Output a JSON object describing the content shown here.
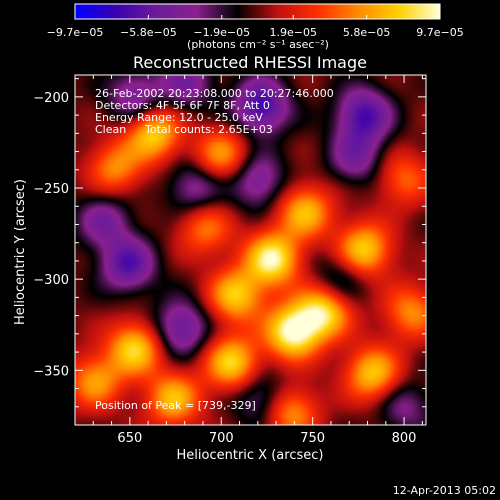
{
  "chart_data": {
    "type": "heatmap",
    "title": "Reconstructed RHESSI Image",
    "xlabel": "Heliocentric X (arcsec)",
    "ylabel": "Heliocentric Y (arcsec)",
    "xlim": [
      620,
      812
    ],
    "ylim": [
      -380,
      -188
    ],
    "x_ticks": [
      650,
      700,
      750,
      800
    ],
    "y_ticks": [
      -200,
      -250,
      -300,
      -350
    ],
    "x_tick_labels": [
      "650",
      "700",
      "750",
      "800"
    ],
    "y_tick_labels": [
      "−200",
      "−250",
      "−300",
      "−350"
    ],
    "colorbar": {
      "range": [
        -9.7e-05,
        9.7e-05
      ],
      "tick_values": [
        -9.7e-05,
        -5.8e-05,
        -1.9e-05,
        1.9e-05,
        5.8e-05,
        9.7e-05
      ],
      "tick_labels": [
        "−9.7e−05",
        "−5.8e−05",
        "−1.9e−05",
        "1.9e−05",
        "5.8e−05",
        "9.7e−05"
      ],
      "unit_label": "(photons cm⁻² s⁻¹ asec⁻²)"
    },
    "colormap": [
      "#0000ff",
      "#3a00b0",
      "#6a1b9a",
      "#8a2090",
      "#000000",
      "#c01010",
      "#ff3000",
      "#ff8c00",
      "#ffd000",
      "#ffffd8"
    ],
    "annotations": [
      "26-Feb-2002 20:23:08.000 to 20:27:46.000",
      "Detectors: 4F 5F 6F 7F 8F, Att 0",
      "Energy Range: 12.0 - 25.0 keV",
      "Clean",
      "Total counts: 2.65E+03"
    ],
    "peak_label": "Position of Peak = [739,-329]",
    "peak": [
      739,
      -329
    ],
    "sources": [
      {
        "x": 739,
        "y": -329,
        "v": 1.0
      },
      {
        "x": 728,
        "y": -289,
        "v": 0.95
      },
      {
        "x": 756,
        "y": -318,
        "v": 0.85
      },
      {
        "x": 708,
        "y": -309,
        "v": 0.75
      },
      {
        "x": 778,
        "y": -284,
        "v": 0.8
      },
      {
        "x": 746,
        "y": -263,
        "v": 0.7
      },
      {
        "x": 663,
        "y": -220,
        "v": 0.8
      },
      {
        "x": 642,
        "y": -239,
        "v": 0.55
      },
      {
        "x": 700,
        "y": -232,
        "v": 0.6
      },
      {
        "x": 653,
        "y": -338,
        "v": 0.8
      },
      {
        "x": 631,
        "y": -356,
        "v": 0.6
      },
      {
        "x": 674,
        "y": -366,
        "v": 0.7
      },
      {
        "x": 706,
        "y": -346,
        "v": 0.8
      },
      {
        "x": 738,
        "y": -373,
        "v": 0.6
      },
      {
        "x": 783,
        "y": -352,
        "v": 0.75
      },
      {
        "x": 804,
        "y": -318,
        "v": 0.55
      },
      {
        "x": 800,
        "y": -245,
        "v": 0.45
      },
      {
        "x": 691,
        "y": -272,
        "v": 0.5
      },
      {
        "x": 649,
        "y": -292,
        "v": -0.65
      },
      {
        "x": 653,
        "y": -200,
        "v": -0.5
      },
      {
        "x": 678,
        "y": -327,
        "v": -0.6
      },
      {
        "x": 681,
        "y": -192,
        "v": -0.45
      },
      {
        "x": 722,
        "y": -205,
        "v": -0.75
      },
      {
        "x": 778,
        "y": -210,
        "v": -0.7
      },
      {
        "x": 774,
        "y": -233,
        "v": -0.45
      },
      {
        "x": 686,
        "y": -250,
        "v": -0.45
      },
      {
        "x": 720,
        "y": -246,
        "v": -0.5
      },
      {
        "x": 636,
        "y": -268,
        "v": -0.45
      },
      {
        "x": 765,
        "y": -300,
        "v": -0.35
      },
      {
        "x": 722,
        "y": -365,
        "v": -0.4
      },
      {
        "x": 800,
        "y": -370,
        "v": -0.35
      }
    ]
  },
  "footer": {
    "timestamp": "12-Apr-2013 05:02"
  }
}
